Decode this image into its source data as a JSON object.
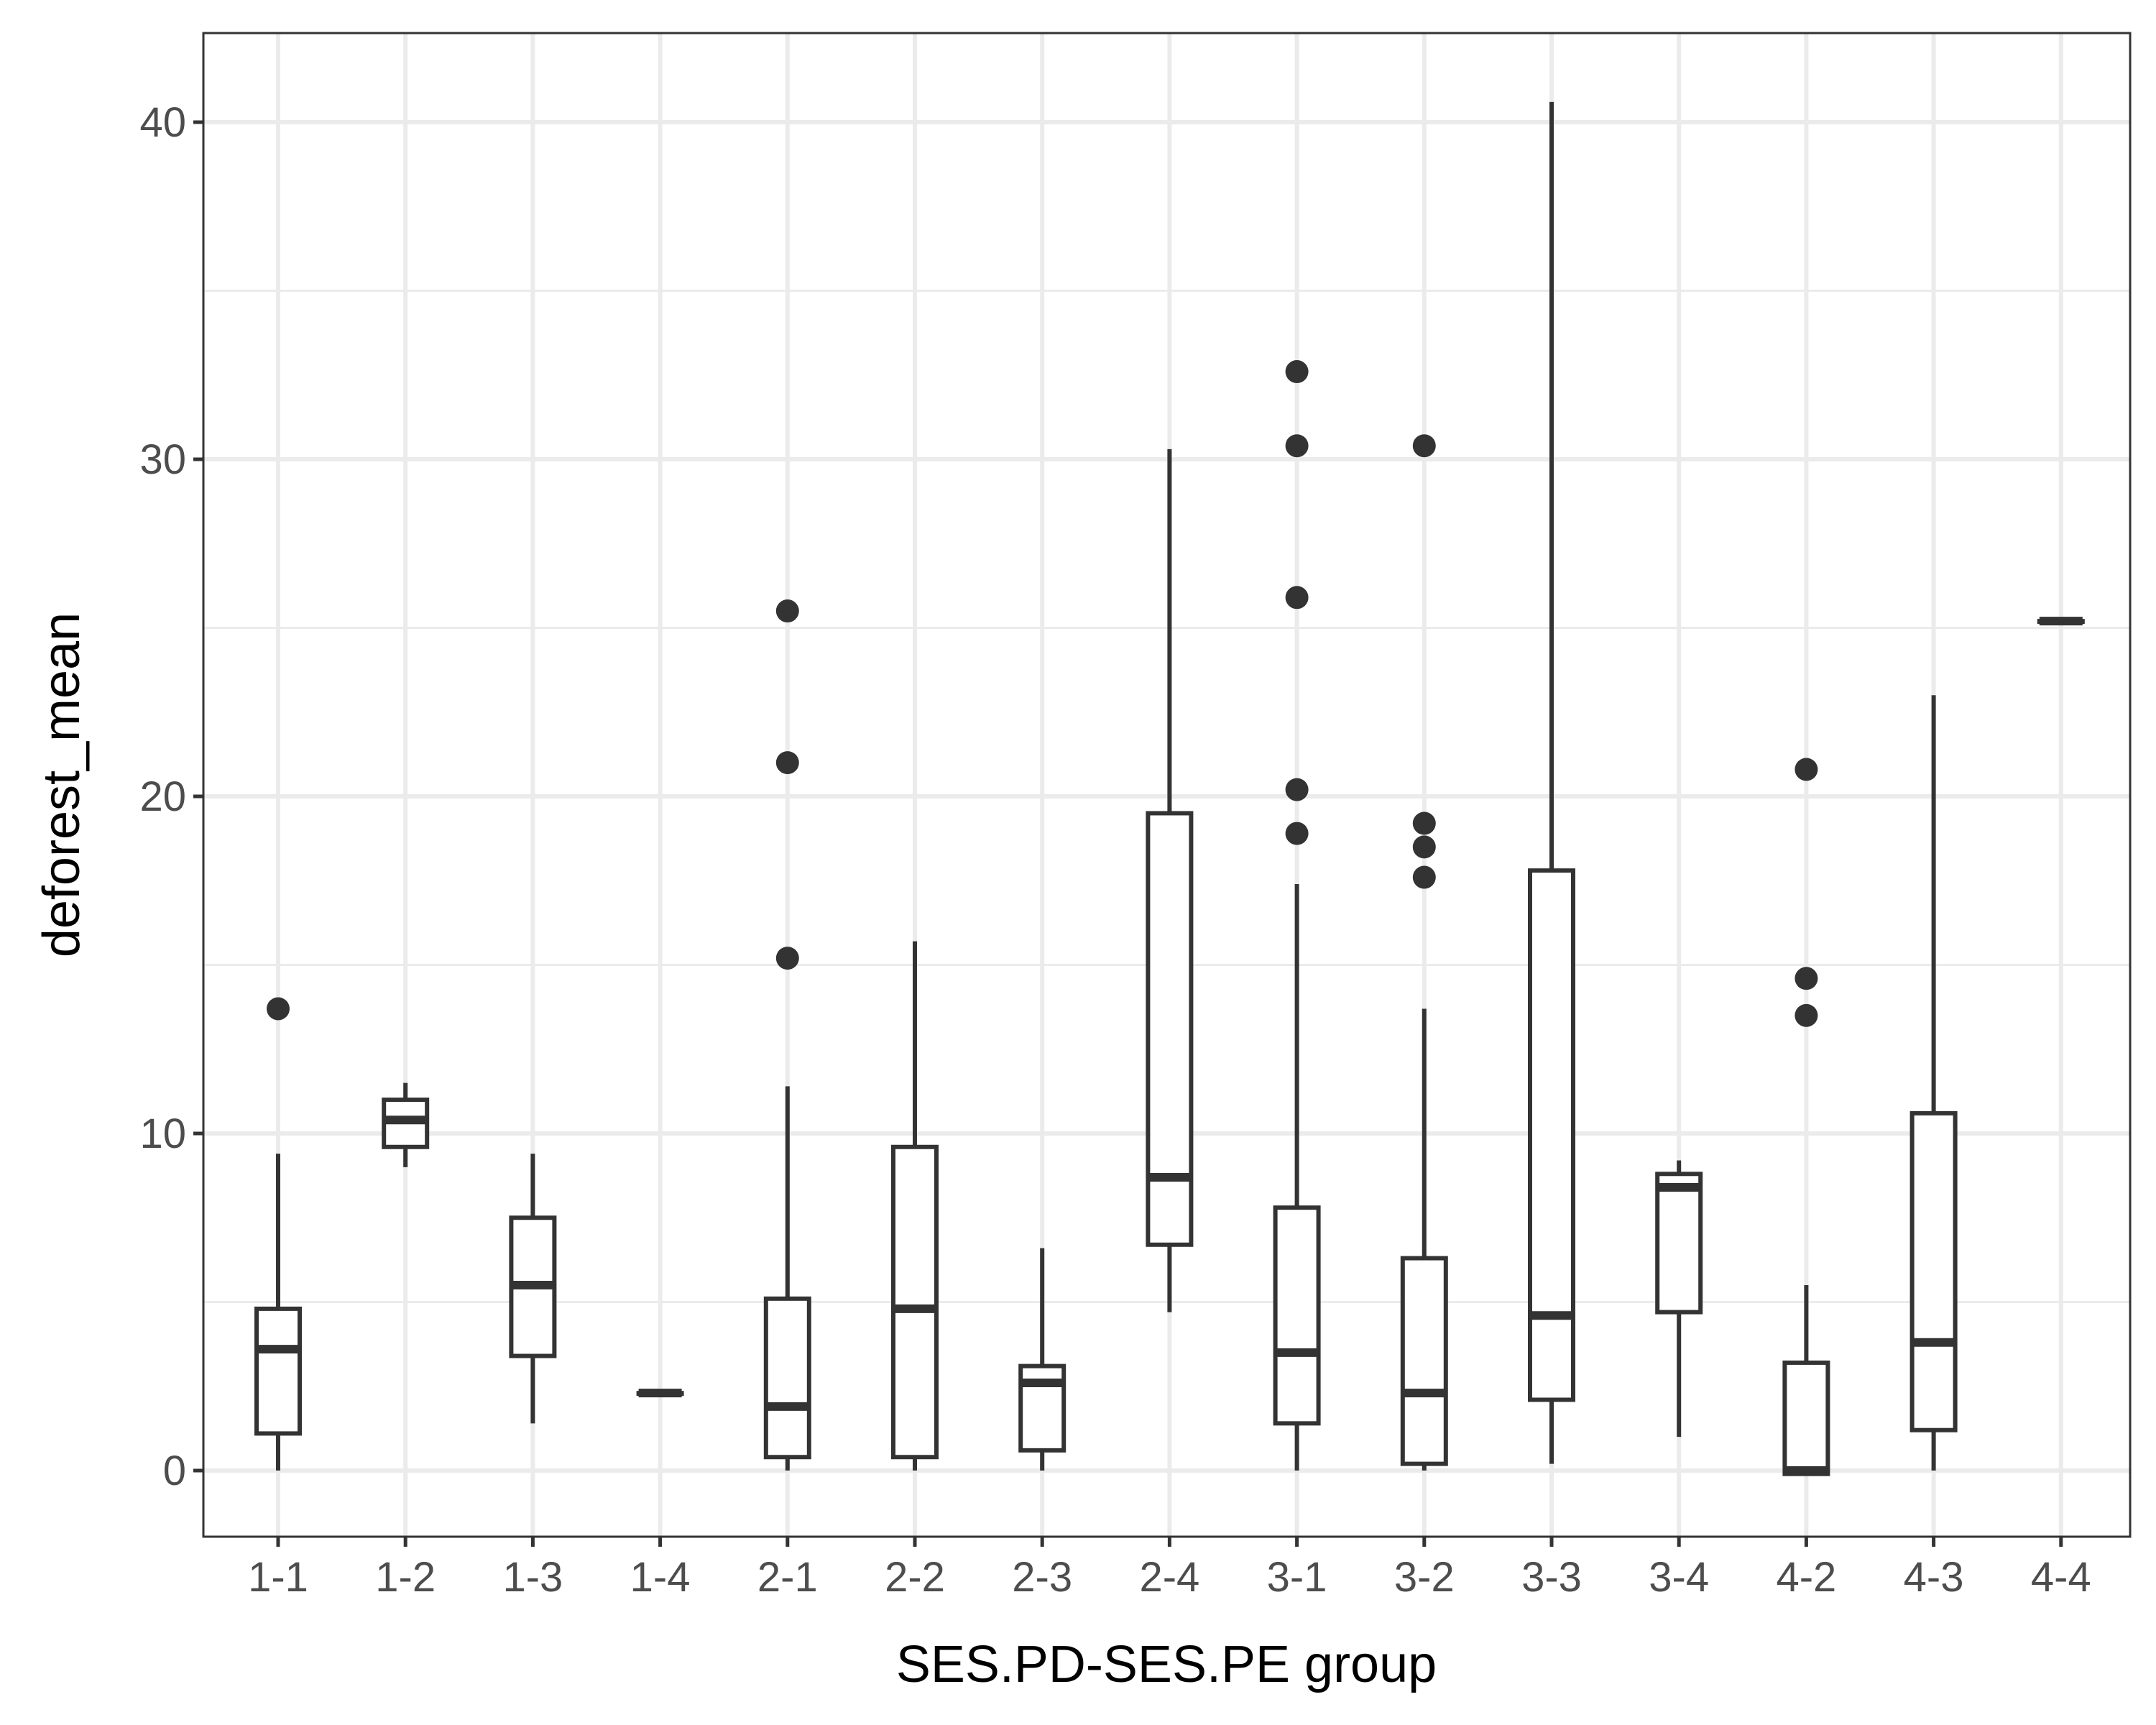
{
  "chart_data": {
    "type": "box",
    "xlabel": "SES.PD-SES.PE group",
    "ylabel": "deforest_mean",
    "ylim": [
      -2,
      42
    ],
    "yticks": [
      0,
      10,
      20,
      30,
      40
    ],
    "grid": true,
    "categories": [
      "1-1",
      "1-2",
      "1-3",
      "1-4",
      "2-1",
      "2-2",
      "2-3",
      "2-4",
      "3-1",
      "3-2",
      "3-3",
      "3-4",
      "4-2",
      "4-3",
      "4-4"
    ],
    "boxes": [
      {
        "category": "1-1",
        "whisker_low": 0.0,
        "q1": 1.1,
        "median": 3.6,
        "q3": 4.8,
        "whisker_high": 9.4,
        "outliers": [
          13.7
        ]
      },
      {
        "category": "1-2",
        "whisker_low": 9.0,
        "q1": 9.6,
        "median": 10.4,
        "q3": 11.0,
        "whisker_high": 11.5,
        "outliers": []
      },
      {
        "category": "1-3",
        "whisker_low": 1.4,
        "q1": 3.4,
        "median": 5.5,
        "q3": 7.5,
        "whisker_high": 9.4,
        "outliers": []
      },
      {
        "category": "1-4",
        "whisker_low": 2.3,
        "q1": 2.3,
        "median": 2.3,
        "q3": 2.3,
        "whisker_high": 2.3,
        "outliers": []
      },
      {
        "category": "2-1",
        "whisker_low": 0.0,
        "q1": 0.4,
        "median": 1.9,
        "q3": 5.1,
        "whisker_high": 11.4,
        "outliers": [
          15.2,
          21.0,
          25.5
        ]
      },
      {
        "category": "2-2",
        "whisker_low": 0.0,
        "q1": 0.4,
        "median": 4.8,
        "q3": 9.6,
        "whisker_high": 15.7,
        "outliers": []
      },
      {
        "category": "2-3",
        "whisker_low": 0.0,
        "q1": 0.6,
        "median": 2.6,
        "q3": 3.1,
        "whisker_high": 6.6,
        "outliers": []
      },
      {
        "category": "2-4",
        "whisker_low": 4.7,
        "q1": 6.7,
        "median": 8.7,
        "q3": 19.5,
        "whisker_high": 30.3,
        "outliers": []
      },
      {
        "category": "3-1",
        "whisker_low": 0.0,
        "q1": 1.4,
        "median": 3.5,
        "q3": 7.8,
        "whisker_high": 17.4,
        "outliers": [
          18.9,
          20.2,
          25.9,
          30.4,
          32.6
        ]
      },
      {
        "category": "3-2",
        "whisker_low": 0.0,
        "q1": 0.2,
        "median": 2.3,
        "q3": 6.3,
        "whisker_high": 13.7,
        "outliers": [
          17.6,
          18.5,
          19.2,
          30.4
        ]
      },
      {
        "category": "3-3",
        "whisker_low": 0.2,
        "q1": 2.1,
        "median": 4.6,
        "q3": 17.8,
        "whisker_high": 40.6,
        "outliers": []
      },
      {
        "category": "3-4",
        "whisker_low": 1.0,
        "q1": 4.7,
        "median": 8.4,
        "q3": 8.8,
        "whisker_high": 9.2,
        "outliers": []
      },
      {
        "category": "4-2",
        "whisker_low": -0.1,
        "q1": -0.1,
        "median": 0.0,
        "q3": 3.2,
        "whisker_high": 5.5,
        "outliers": [
          13.5,
          14.6,
          20.8
        ]
      },
      {
        "category": "4-3",
        "whisker_low": 0.0,
        "q1": 1.2,
        "median": 3.8,
        "q3": 10.6,
        "whisker_high": 23.0,
        "outliers": []
      },
      {
        "category": "4-4",
        "whisker_low": 25.2,
        "q1": 25.2,
        "median": 25.2,
        "q3": 25.2,
        "whisker_high": 25.2,
        "outliers": []
      }
    ]
  }
}
